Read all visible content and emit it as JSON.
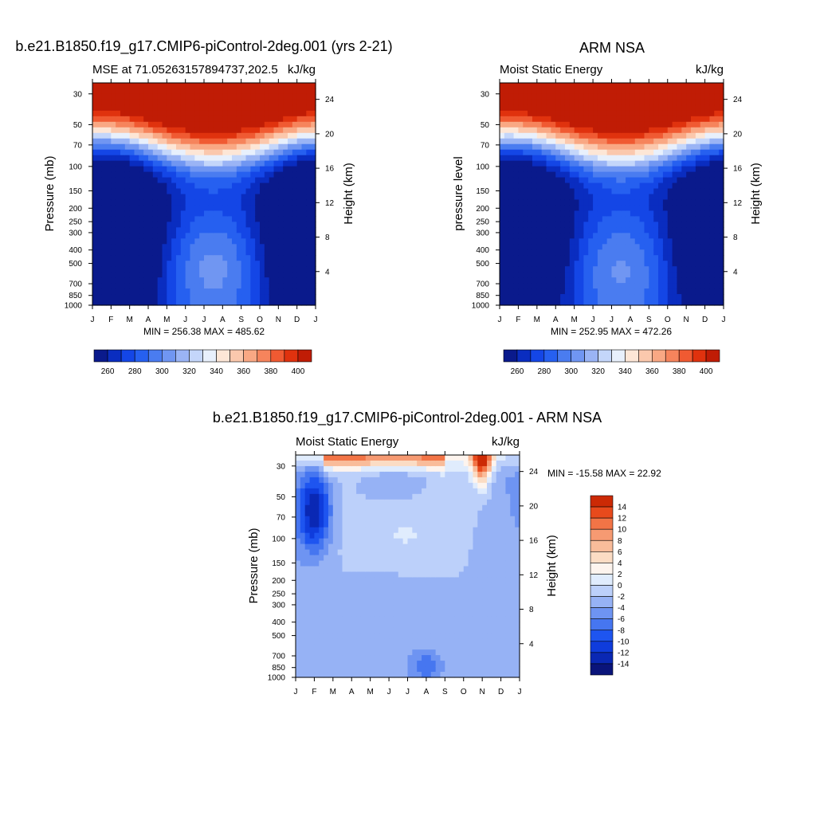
{
  "page_title_left": "b.e21.B1850.f19_g17.CMIP6-piControl-2deg.001 (yrs 2-21)",
  "page_title_right": "ARM NSA",
  "page_title_bottom": "b.e21.B1850.f19_g17.CMIP6-piControl-2deg.001 - ARM NSA",
  "colors": {
    "mse_scale": [
      "#0a1a8c",
      "#0a2dc0",
      "#1446e6",
      "#2660f0",
      "#4a7cf0",
      "#7096f2",
      "#9ab4f5",
      "#c4d6fa",
      "#e8f0fc",
      "#fde6d6",
      "#fbc8ad",
      "#f9a884",
      "#f6845c",
      "#f05a32",
      "#e0320e",
      "#c01c05",
      "#8e0000"
    ],
    "diff_scale": [
      "#0a147a",
      "#0a28b4",
      "#0f3cdc",
      "#1e55f0",
      "#4676f0",
      "#6e94f2",
      "#96b2f5",
      "#bcd0fa",
      "#e0ecfd",
      "#fdf4ee",
      "#fbdcc4",
      "#f9bc9a",
      "#f69a72",
      "#f27446",
      "#e84a1c",
      "#cc2a05",
      "#8a0000"
    ]
  },
  "chart_data": [
    {
      "type": "heatmap",
      "title": "MSE at 71.05263157894737,202.5",
      "units": "kJ/kg",
      "xlabel": "",
      "ylabel": "Pressure (mb)",
      "ylabel_right": "Height (km)",
      "x_ticks": [
        "J",
        "F",
        "M",
        "A",
        "M",
        "J",
        "J",
        "A",
        "S",
        "O",
        "N",
        "D",
        "J"
      ],
      "y_ticks": [
        "30",
        "50",
        "70",
        "100",
        "150",
        "200",
        "250",
        "300",
        "400",
        "500",
        "700",
        "850",
        "1000"
      ],
      "y_ticks_right": [
        "24",
        "20",
        "16",
        "12",
        "8",
        "4"
      ],
      "stats_text": "MIN = 256.38 MAX = 485.62",
      "colorbar_labels": [
        "260",
        "280",
        "300",
        "320",
        "340",
        "360",
        "380",
        "400"
      ],
      "levels": [
        260,
        270,
        280,
        290,
        300,
        310,
        320,
        330,
        340,
        350,
        360,
        370,
        380,
        390,
        400
      ],
      "ylim": [
        1000,
        25
      ],
      "grid": false
    },
    {
      "type": "heatmap",
      "title": "Moist Static Energy",
      "units": "kJ/kg",
      "xlabel": "",
      "ylabel": "pressure level",
      "ylabel_right": "Height (km)",
      "x_ticks": [
        "J",
        "F",
        "M",
        "A",
        "M",
        "J",
        "J",
        "A",
        "S",
        "O",
        "N",
        "D",
        "J"
      ],
      "y_ticks": [
        "30",
        "50",
        "70",
        "100",
        "150",
        "200",
        "250",
        "300",
        "400",
        "500",
        "700",
        "850",
        "1000"
      ],
      "y_ticks_right": [
        "24",
        "20",
        "16",
        "12",
        "8",
        "4"
      ],
      "stats_text": "MIN = 252.95 MAX = 472.26",
      "colorbar_labels": [
        "260",
        "280",
        "300",
        "320",
        "340",
        "360",
        "380",
        "400"
      ],
      "levels": [
        260,
        270,
        280,
        290,
        300,
        310,
        320,
        330,
        340,
        350,
        360,
        370,
        380,
        390,
        400
      ],
      "ylim": [
        1000,
        25
      ],
      "grid": false
    },
    {
      "type": "heatmap",
      "title": "Moist Static Energy",
      "units": "kJ/kg",
      "xlabel": "",
      "ylabel": "Pressure (mb)",
      "ylabel_right": "Height (km)",
      "x_ticks": [
        "J",
        "F",
        "M",
        "A",
        "M",
        "J",
        "J",
        "A",
        "S",
        "O",
        "N",
        "D",
        "J"
      ],
      "y_ticks": [
        "30",
        "50",
        "70",
        "100",
        "150",
        "200",
        "250",
        "300",
        "400",
        "500",
        "700",
        "850",
        "1000"
      ],
      "y_ticks_right": [
        "24",
        "20",
        "16",
        "12",
        "8",
        "4"
      ],
      "stats_text": "MIN = -15.58 MAX =  22.92",
      "colorbar_labels": [
        "14",
        "12",
        "10",
        "8",
        "6",
        "4",
        "2",
        "0",
        "-2",
        "-4",
        "-6",
        "-8",
        "-10",
        "-12",
        "-14"
      ],
      "levels": [
        -14,
        -12,
        -10,
        -8,
        -6,
        -4,
        -2,
        0,
        2,
        4,
        6,
        8,
        10,
        12,
        14
      ],
      "ylim": [
        1000,
        25
      ],
      "grid": false
    }
  ]
}
